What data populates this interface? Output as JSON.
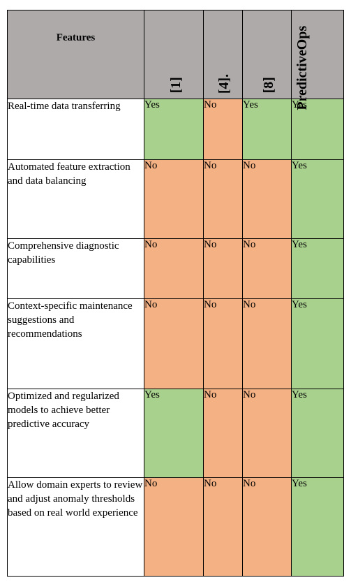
{
  "table": {
    "headers": [
      "Features",
      "[1]",
      "[4].",
      "[8]",
      "PredictiveOps"
    ],
    "rows": [
      {
        "feature": "Real-time data transferring",
        "values": [
          "Yes",
          "No",
          "Yes",
          "Yes"
        ]
      },
      {
        "feature": "Automated feature extraction and data balancing",
        "values": [
          "No",
          "No",
          "No",
          "Yes"
        ]
      },
      {
        "feature": "Comprehensive diagnostic capabilities",
        "values": [
          "No",
          "No",
          "No",
          "Yes"
        ]
      },
      {
        "feature": "Context-specific maintenance suggestions and recommendations",
        "values": [
          "No",
          "No",
          "No",
          "Yes"
        ]
      },
      {
        "feature": "Optimized and regularized models to achieve better predictive accuracy",
        "values": [
          "Yes",
          "No",
          "No",
          "Yes"
        ]
      },
      {
        "feature": "Allow domain experts to review and adjust anomaly thresholds based on real world experience",
        "values": [
          "No",
          "No",
          "No",
          "Yes"
        ]
      }
    ]
  },
  "colors": {
    "header_bg": "#aeaaaa",
    "yes_bg": "#a9d18e",
    "no_bg": "#f4b183",
    "border": "#000000"
  }
}
